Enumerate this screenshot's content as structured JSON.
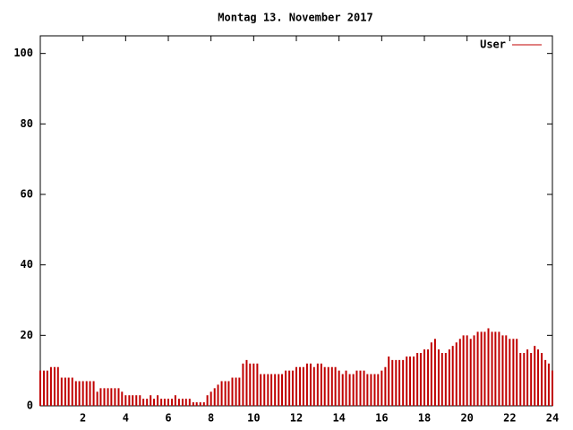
{
  "chart_data": {
    "type": "impulse",
    "title": "Montag 13. November 2017",
    "x": [
      0,
      0.17,
      0.33,
      0.5,
      0.67,
      0.83,
      1,
      1.17,
      1.33,
      1.5,
      1.67,
      1.83,
      2,
      2.17,
      2.33,
      2.5,
      2.67,
      2.83,
      3,
      3.17,
      3.33,
      3.5,
      3.67,
      3.83,
      4,
      4.17,
      4.33,
      4.5,
      4.67,
      4.83,
      5,
      5.17,
      5.33,
      5.5,
      5.67,
      5.83,
      6,
      6.17,
      6.33,
      6.5,
      6.67,
      6.83,
      7,
      7.17,
      7.33,
      7.5,
      7.67,
      7.83,
      8,
      8.17,
      8.33,
      8.5,
      8.67,
      8.83,
      9,
      9.17,
      9.33,
      9.5,
      9.67,
      9.83,
      10,
      10.17,
      10.33,
      10.5,
      10.67,
      10.83,
      11,
      11.17,
      11.33,
      11.5,
      11.67,
      11.83,
      12,
      12.17,
      12.33,
      12.5,
      12.67,
      12.83,
      13,
      13.17,
      13.33,
      13.5,
      13.67,
      13.83,
      14,
      14.17,
      14.33,
      14.5,
      14.67,
      14.83,
      15,
      15.17,
      15.33,
      15.5,
      15.67,
      15.83,
      16,
      16.17,
      16.33,
      16.5,
      16.67,
      16.83,
      17,
      17.17,
      17.33,
      17.5,
      17.67,
      17.83,
      18,
      18.17,
      18.33,
      18.5,
      18.67,
      18.83,
      19,
      19.17,
      19.33,
      19.5,
      19.67,
      19.83,
      20,
      20.17,
      20.33,
      20.5,
      20.67,
      20.83,
      21,
      21.17,
      21.33,
      21.5,
      21.67,
      21.83,
      22,
      22.17,
      22.33,
      22.5,
      22.67,
      22.83,
      23,
      23.17,
      23.33,
      23.5,
      23.67,
      23.83,
      24
    ],
    "series": [
      {
        "name": "User",
        "color": "#c00000",
        "values": [
          10,
          10,
          10,
          11,
          11,
          11,
          8,
          8,
          8,
          8,
          7,
          7,
          7,
          7,
          7,
          7,
          4,
          5,
          5,
          5,
          5,
          5,
          5,
          4,
          3,
          3,
          3,
          3,
          3,
          2,
          2,
          3,
          2,
          3,
          2,
          2,
          2,
          2,
          3,
          2,
          2,
          2,
          2,
          1,
          1,
          1,
          1,
          3,
          4,
          5,
          6,
          7,
          7,
          7,
          8,
          8,
          8,
          12,
          13,
          12,
          12,
          12,
          9,
          9,
          9,
          9,
          9,
          9,
          9,
          10,
          10,
          10,
          11,
          11,
          11,
          12,
          12,
          11,
          12,
          12,
          11,
          11,
          11,
          11,
          10,
          9,
          10,
          9,
          9,
          10,
          10,
          10,
          9,
          9,
          9,
          9,
          10,
          11,
          14,
          13,
          13,
          13,
          13,
          14,
          14,
          14,
          15,
          15,
          16,
          16,
          18,
          19,
          16,
          15,
          15,
          16,
          17,
          18,
          19,
          20,
          20,
          19,
          20,
          21,
          21,
          21,
          22,
          21,
          21,
          21,
          20,
          20,
          19,
          19,
          19,
          15,
          15,
          16,
          15,
          17,
          16,
          15,
          13,
          12,
          10
        ]
      }
    ],
    "xlim": [
      0,
      24
    ],
    "ylim": [
      0,
      105
    ],
    "xticks": [
      2,
      4,
      6,
      8,
      10,
      12,
      14,
      16,
      18,
      20,
      22,
      24
    ],
    "yticks": [
      0,
      20,
      40,
      60,
      80,
      100
    ],
    "legend": "top-right"
  }
}
